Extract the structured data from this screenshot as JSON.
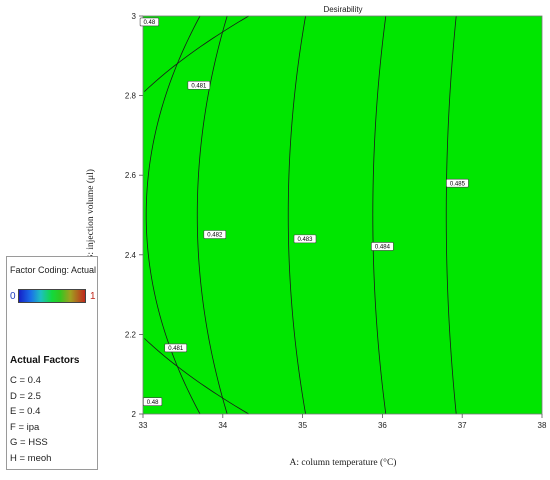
{
  "chart_data": {
    "type": "contour",
    "title": "Desirability",
    "xlabel": "A: column temperature (°C)",
    "ylabel": "B: injection volume (μl)",
    "xlim": [
      33,
      38
    ],
    "ylim": [
      2,
      3
    ],
    "x_ticks": [
      "33",
      "34",
      "35",
      "36",
      "37",
      "38"
    ],
    "y_ticks": [
      "2",
      "2.2",
      "2.4",
      "2.6",
      "2.8",
      "3"
    ],
    "fill_color": "#00e600",
    "line_color": "#1a1a1a",
    "contours": [
      {
        "level": "0.48",
        "vertex_x": 32.2,
        "curvature": 8.5
      },
      {
        "level": "0.481",
        "vertex_x": 33.04,
        "curvature": 2.7
      },
      {
        "level": "0.482",
        "vertex_x": 33.68,
        "curvature": 1.5
      },
      {
        "level": "0.483",
        "vertex_x": 34.82,
        "curvature": 0.87
      },
      {
        "level": "0.484",
        "vertex_x": 35.88,
        "curvature": 0.65
      },
      {
        "level": "0.485",
        "vertex_x": 36.8,
        "curvature": 0.5
      }
    ],
    "contour_labels": [
      {
        "text": "0.48",
        "x": 33.08,
        "y": 2.985
      },
      {
        "text": "0.481",
        "x": 33.7,
        "y": 2.826
      },
      {
        "text": "0.482",
        "x": 33.9,
        "y": 2.451
      },
      {
        "text": "0.483",
        "x": 35.03,
        "y": 2.44
      },
      {
        "text": "0.484",
        "x": 36.0,
        "y": 2.421
      },
      {
        "text": "0.485",
        "x": 36.94,
        "y": 2.58
      },
      {
        "text": "0.481",
        "x": 33.41,
        "y": 2.166
      },
      {
        "text": "0.48",
        "x": 33.12,
        "y": 2.031
      }
    ]
  },
  "legend": {
    "coding_label": "Factor Coding: Actual",
    "min_label": "0",
    "max_label": "1"
  },
  "actual_factors": {
    "title": "Actual Factors",
    "items": [
      "C = 0.4",
      "D = 2.5",
      "E = 0.4",
      "F = ipa",
      "G = HSS",
      "H = meoh"
    ]
  }
}
